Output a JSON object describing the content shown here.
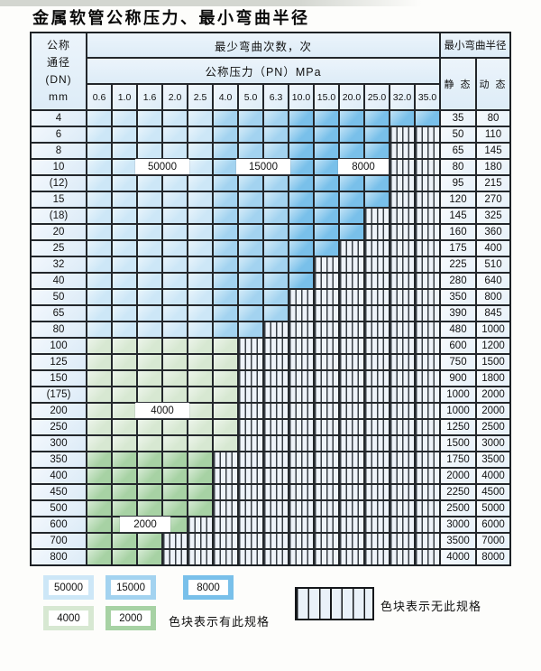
{
  "title": "金属软管公称压力、最小弯曲半径",
  "table": {
    "dn_header_lines": [
      "公称",
      "通径",
      "(DN)",
      "mm"
    ],
    "bend_cycles_header": "最少弯曲次数，次",
    "pressure_header": "公称压力（PN）MPa",
    "pressure_cols": [
      "0.6",
      "1.0",
      "1.6",
      "2.0",
      "2.5",
      "4.0",
      "5.0",
      "6.3",
      "10.0",
      "15.0",
      "20.0",
      "25.0",
      "32.0",
      "35.0"
    ],
    "radius_header": "最小弯曲半径",
    "static_header": "静 态",
    "dynamic_header": "动 态",
    "rows": [
      {
        "dn": "4",
        "zones": [
          [
            "z50000",
            5
          ],
          [
            "z15000",
            3
          ],
          [
            "z8000",
            6
          ]
        ],
        "static": "35",
        "dynamic": "80"
      },
      {
        "dn": "6",
        "zones": [
          [
            "z50000",
            5
          ],
          [
            "z15000",
            3
          ],
          [
            "z8000",
            4
          ],
          [
            "none",
            2
          ]
        ],
        "static": "50",
        "dynamic": "110"
      },
      {
        "dn": "8",
        "zones": [
          [
            "z50000",
            5
          ],
          [
            "z15000",
            3
          ],
          [
            "z8000",
            4
          ],
          [
            "none",
            2
          ]
        ],
        "static": "65",
        "dynamic": "145"
      },
      {
        "dn": "10",
        "zones": [
          [
            "z50000",
            5
          ],
          [
            "z15000",
            3
          ],
          [
            "z8000",
            4
          ],
          [
            "none",
            2
          ]
        ],
        "static": "80",
        "dynamic": "180"
      },
      {
        "dn": "(12)",
        "zones": [
          [
            "z50000",
            5
          ],
          [
            "z15000",
            3
          ],
          [
            "z8000",
            4
          ],
          [
            "none",
            2
          ]
        ],
        "static": "95",
        "dynamic": "215"
      },
      {
        "dn": "15",
        "zones": [
          [
            "z50000",
            5
          ],
          [
            "z15000",
            3
          ],
          [
            "z8000",
            4
          ],
          [
            "none",
            2
          ]
        ],
        "static": "120",
        "dynamic": "270"
      },
      {
        "dn": "(18)",
        "zones": [
          [
            "z50000",
            5
          ],
          [
            "z15000",
            3
          ],
          [
            "z8000",
            3
          ],
          [
            "none",
            3
          ]
        ],
        "static": "145",
        "dynamic": "325"
      },
      {
        "dn": "20",
        "zones": [
          [
            "z50000",
            5
          ],
          [
            "z15000",
            3
          ],
          [
            "z8000",
            3
          ],
          [
            "none",
            3
          ]
        ],
        "static": "160",
        "dynamic": "360"
      },
      {
        "dn": "25",
        "zones": [
          [
            "z50000",
            5
          ],
          [
            "z15000",
            3
          ],
          [
            "z8000",
            2
          ],
          [
            "none",
            4
          ]
        ],
        "static": "175",
        "dynamic": "400"
      },
      {
        "dn": "32",
        "zones": [
          [
            "z50000",
            5
          ],
          [
            "z15000",
            3
          ],
          [
            "z8000",
            1
          ],
          [
            "none",
            5
          ]
        ],
        "static": "225",
        "dynamic": "510"
      },
      {
        "dn": "40",
        "zones": [
          [
            "z50000",
            5
          ],
          [
            "z15000",
            3
          ],
          [
            "z8000",
            1
          ],
          [
            "none",
            5
          ]
        ],
        "static": "280",
        "dynamic": "640"
      },
      {
        "dn": "50",
        "zones": [
          [
            "z50000",
            5
          ],
          [
            "z15000",
            3
          ],
          [
            "none",
            6
          ]
        ],
        "static": "350",
        "dynamic": "800"
      },
      {
        "dn": "65",
        "zones": [
          [
            "z50000",
            5
          ],
          [
            "z15000",
            3
          ],
          [
            "none",
            6
          ]
        ],
        "static": "390",
        "dynamic": "845"
      },
      {
        "dn": "80",
        "zones": [
          [
            "z50000",
            5
          ],
          [
            "z15000",
            2
          ],
          [
            "none",
            7
          ]
        ],
        "static": "480",
        "dynamic": "1000"
      },
      {
        "dn": "100",
        "zones": [
          [
            "z4000",
            6
          ],
          [
            "none",
            8
          ]
        ],
        "static": "600",
        "dynamic": "1200"
      },
      {
        "dn": "125",
        "zones": [
          [
            "z4000",
            6
          ],
          [
            "none",
            8
          ]
        ],
        "static": "750",
        "dynamic": "1500"
      },
      {
        "dn": "150",
        "zones": [
          [
            "z4000",
            6
          ],
          [
            "none",
            8
          ]
        ],
        "static": "900",
        "dynamic": "1800"
      },
      {
        "dn": "(175)",
        "zones": [
          [
            "z4000",
            6
          ],
          [
            "none",
            8
          ]
        ],
        "static": "1000",
        "dynamic": "2000"
      },
      {
        "dn": "200",
        "zones": [
          [
            "z4000",
            6
          ],
          [
            "none",
            8
          ]
        ],
        "static": "1000",
        "dynamic": "2000"
      },
      {
        "dn": "250",
        "zones": [
          [
            "z4000",
            6
          ],
          [
            "none",
            8
          ]
        ],
        "static": "1250",
        "dynamic": "2500"
      },
      {
        "dn": "300",
        "zones": [
          [
            "z4000",
            6
          ],
          [
            "none",
            8
          ]
        ],
        "static": "1500",
        "dynamic": "3000"
      },
      {
        "dn": "350",
        "zones": [
          [
            "z2000",
            5
          ],
          [
            "none",
            9
          ]
        ],
        "static": "1750",
        "dynamic": "3500"
      },
      {
        "dn": "400",
        "zones": [
          [
            "z2000",
            5
          ],
          [
            "none",
            9
          ]
        ],
        "static": "2000",
        "dynamic": "4000"
      },
      {
        "dn": "450",
        "zones": [
          [
            "z2000",
            5
          ],
          [
            "none",
            9
          ]
        ],
        "static": "2250",
        "dynamic": "4500"
      },
      {
        "dn": "500",
        "zones": [
          [
            "z2000",
            5
          ],
          [
            "none",
            9
          ]
        ],
        "static": "2500",
        "dynamic": "5000"
      },
      {
        "dn": "600",
        "zones": [
          [
            "z2000",
            4
          ],
          [
            "none",
            10
          ]
        ],
        "static": "3000",
        "dynamic": "6000"
      },
      {
        "dn": "700",
        "zones": [
          [
            "z2000",
            3
          ],
          [
            "none",
            11
          ]
        ],
        "static": "3500",
        "dynamic": "7000"
      },
      {
        "dn": "800",
        "zones": [
          [
            "z2000",
            3
          ],
          [
            "none",
            11
          ]
        ],
        "static": "4000",
        "dynamic": "8000"
      }
    ]
  },
  "overlays": [
    "50000",
    "15000",
    "8000",
    "4000",
    "2000"
  ],
  "legend": {
    "items": [
      {
        "label": "50000",
        "zone": "z50000"
      },
      {
        "label": "15000",
        "zone": "z15000"
      },
      {
        "label": "8000",
        "zone": "z8000"
      },
      {
        "label": "4000",
        "zone": "z4000"
      },
      {
        "label": "2000",
        "zone": "z2000"
      }
    ],
    "has_spec_text": "色块表示有此规格",
    "no_spec_text": "色块表示无此规格"
  },
  "colors": {
    "z50000": "#cde7f7",
    "z15000": "#a3d3f0",
    "z8000": "#79c0ea",
    "z4000": "#d7e8d2",
    "z2000": "#a7d2a4",
    "grid_line": "#23272b"
  }
}
